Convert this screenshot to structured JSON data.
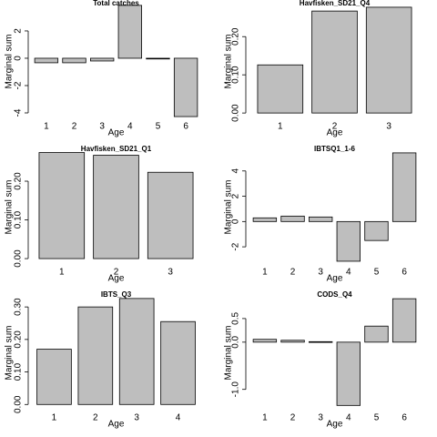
{
  "chart_data": [
    {
      "type": "bar",
      "title": "Total catches",
      "xlabel": "Age",
      "ylabel": "Marginal sum",
      "categories": [
        "1",
        "2",
        "3",
        "4",
        "5",
        "6"
      ],
      "values": [
        -0.33,
        -0.33,
        -0.2,
        3.87,
        -0.05,
        -4.27
      ],
      "color": "#bebebe",
      "ylim": [
        -4.4,
        3.93
      ],
      "yticks": [
        -4,
        -2,
        0,
        2
      ]
    },
    {
      "type": "bar",
      "title": "Havfisken_SD21_Q4",
      "xlabel": "Age",
      "ylabel": "Marginal sum",
      "categories": [
        "1",
        "2",
        "3"
      ],
      "values": [
        0.126,
        0.267,
        0.277
      ],
      "color": "#bebebe",
      "ylim": [
        -0.014,
        0.284
      ],
      "yticks": [
        {
          "value": 0,
          "label": "0.00"
        },
        {
          "value": 0.1,
          "label": "0.10"
        },
        {
          "value": 0.2,
          "label": "0.20"
        }
      ]
    },
    {
      "type": "bar",
      "title": "Havfisken_SD21_Q1",
      "xlabel": "Age",
      "ylabel": "Marginal sum",
      "categories": [
        "1",
        "2",
        "3"
      ],
      "values": [
        0.274,
        0.267,
        0.223
      ],
      "color": "#bebebe",
      "ylim": [
        -0.014,
        0.28
      ],
      "yticks": [
        {
          "value": 0,
          "label": "0.00"
        },
        {
          "value": 0.1,
          "label": "0.10"
        },
        {
          "value": 0.2,
          "label": "0.20"
        }
      ]
    },
    {
      "type": "bar",
      "title": "IBTSQ1_1-6",
      "xlabel": "Age",
      "ylabel": "Marginal sum",
      "categories": [
        "1",
        "2",
        "3",
        "4",
        "5",
        "6"
      ],
      "values": [
        0.29,
        0.43,
        0.36,
        -3.14,
        -1.5,
        5.43
      ],
      "color": "#bebebe",
      "ylim": [
        -3.36,
        5.64
      ],
      "yticks": [
        -2,
        0,
        2,
        4
      ]
    },
    {
      "type": "bar",
      "title": "IBTS_Q3",
      "xlabel": "Age",
      "ylabel": "Marginal sum",
      "categories": [
        "1",
        "2",
        "3",
        "4"
      ],
      "values": [
        0.17,
        0.3,
        0.326,
        0.255
      ],
      "color": "#bebebe",
      "ylim": [
        -0.016,
        0.334
      ],
      "yticks": [
        {
          "value": 0,
          "label": "0.00"
        },
        {
          "value": 0.1,
          "label": "0.10"
        },
        {
          "value": 0.2,
          "label": "0.20"
        },
        {
          "value": 0.3,
          "label": "0.30"
        }
      ]
    },
    {
      "type": "bar",
      "title": "CODS_Q4",
      "xlabel": "Age",
      "ylabel": "Marginal sum",
      "categories": [
        "1",
        "2",
        "3",
        "4",
        "5",
        "6"
      ],
      "values": [
        0.06,
        0.04,
        0.01,
        -1.34,
        0.34,
        0.92
      ],
      "color": "#bebebe",
      "ylim": [
        -1.43,
        0.98
      ],
      "yticks": [
        {
          "value": -1,
          "label": "-1.0"
        },
        {
          "value": 0,
          "label": "0.0"
        },
        {
          "value": 0.5,
          "label": "0.5"
        }
      ]
    }
  ]
}
